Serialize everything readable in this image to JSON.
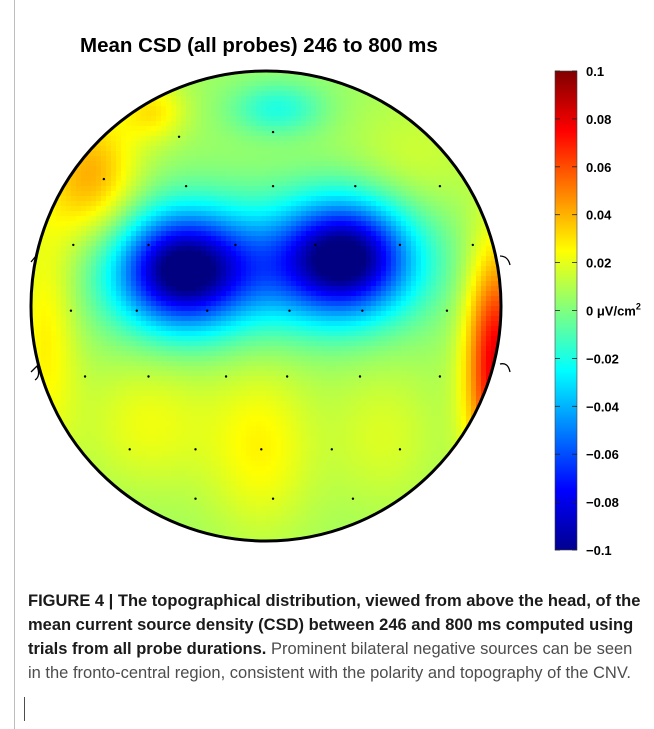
{
  "chart_data": {
    "type": "heatmap",
    "subtype": "scalp-topography",
    "title": "Mean CSD (all probes) 246 to 800 ms",
    "colorbar": {
      "colormap": "jet",
      "range": [
        -0.1,
        0.1
      ],
      "unit_label": "μV/cm",
      "unit_superscript": "2",
      "ticks": [
        {
          "value": 0.1,
          "label": "0.1"
        },
        {
          "value": 0.08,
          "label": "0.08"
        },
        {
          "value": 0.06,
          "label": "0.06"
        },
        {
          "value": 0.04,
          "label": "0.04"
        },
        {
          "value": 0.02,
          "label": "0.02"
        },
        {
          "value": 0,
          "label": "0"
        },
        {
          "value": -0.02,
          "label": "−0.02"
        },
        {
          "value": -0.04,
          "label": "−0.04"
        },
        {
          "value": -0.06,
          "label": "−0.06"
        },
        {
          "value": -0.08,
          "label": "−0.08"
        },
        {
          "value": -0.1,
          "label": "−0.1"
        }
      ]
    },
    "field_components": [
      {
        "region": "fronto-central left",
        "center": [
          -0.36,
          -0.15
        ],
        "sigma": [
          0.19,
          0.17
        ],
        "value": -0.09
      },
      {
        "region": "fronto-central right",
        "center": [
          0.34,
          -0.21
        ],
        "sigma": [
          0.19,
          0.17
        ],
        "value": -0.09
      },
      {
        "region": "fronto-central midline",
        "center": [
          0.0,
          -0.16
        ],
        "sigma": [
          0.42,
          0.19
        ],
        "value": -0.04
      },
      {
        "region": "frontal midline",
        "center": [
          0.05,
          -0.84
        ],
        "sigma": [
          0.14,
          0.08
        ],
        "value": -0.025
      },
      {
        "region": "right lateral",
        "center": [
          0.98,
          0.25
        ],
        "sigma": [
          0.09,
          0.34
        ],
        "value": 0.075
      },
      {
        "region": "left anterior",
        "center": [
          -0.74,
          -0.55
        ],
        "sigma": [
          0.14,
          0.2
        ],
        "value": 0.035
      },
      {
        "region": "left frontopolar",
        "center": [
          -0.48,
          -0.83
        ],
        "sigma": [
          0.1,
          0.09
        ],
        "value": 0.022
      },
      {
        "region": "left lateral",
        "center": [
          -0.94,
          0.1
        ],
        "sigma": [
          0.1,
          0.4
        ],
        "value": 0.022
      },
      {
        "region": "occipital midline",
        "center": [
          -0.02,
          0.6
        ],
        "sigma": [
          0.16,
          0.26
        ],
        "value": 0.02
      },
      {
        "region": "left posterior",
        "center": [
          -0.5,
          0.5
        ],
        "sigma": [
          0.2,
          0.2
        ],
        "value": 0.016
      },
      {
        "region": "right posterior",
        "center": [
          0.5,
          0.55
        ],
        "sigma": [
          0.17,
          0.22
        ],
        "value": 0.012
      },
      {
        "region": "right anterior",
        "center": [
          0.62,
          -0.62
        ],
        "sigma": [
          0.2,
          0.18
        ],
        "value": 0.01
      }
    ],
    "baseline": 0.006,
    "electrodes": [
      [
        -0.37,
        -0.72
      ],
      [
        0.03,
        -0.74
      ],
      [
        -0.69,
        -0.54
      ],
      [
        -0.34,
        -0.51
      ],
      [
        0.03,
        -0.51
      ],
      [
        0.38,
        -0.51
      ],
      [
        0.74,
        -0.51
      ],
      [
        -0.82,
        -0.26
      ],
      [
        -0.5,
        -0.26
      ],
      [
        -0.13,
        -0.26
      ],
      [
        0.21,
        -0.26
      ],
      [
        0.57,
        -0.26
      ],
      [
        0.88,
        -0.26
      ],
      [
        -0.83,
        0.02
      ],
      [
        -0.55,
        0.02
      ],
      [
        -0.25,
        0.02
      ],
      [
        0.1,
        0.02
      ],
      [
        0.41,
        0.02
      ],
      [
        0.77,
        0.02
      ],
      [
        -0.77,
        0.3
      ],
      [
        -0.5,
        0.3
      ],
      [
        -0.17,
        0.3
      ],
      [
        0.09,
        0.3
      ],
      [
        0.4,
        0.3
      ],
      [
        0.74,
        0.3
      ],
      [
        -0.58,
        0.61
      ],
      [
        -0.3,
        0.61
      ],
      [
        -0.02,
        0.61
      ],
      [
        0.28,
        0.61
      ],
      [
        0.57,
        0.61
      ],
      [
        -0.3,
        0.82
      ],
      [
        0.03,
        0.82
      ],
      [
        0.37,
        0.82
      ]
    ]
  },
  "caption": {
    "label": "FIGURE 4 | ",
    "lead": "The topographical distribution, viewed from above the head, of the mean current source density (CSD) between 246 and 800 ms computed using trials from all probe durations.",
    "body": "Prominent bilateral negative sources can be seen in the fronto-central region, consistent with the polarity and topography of the CNV."
  }
}
